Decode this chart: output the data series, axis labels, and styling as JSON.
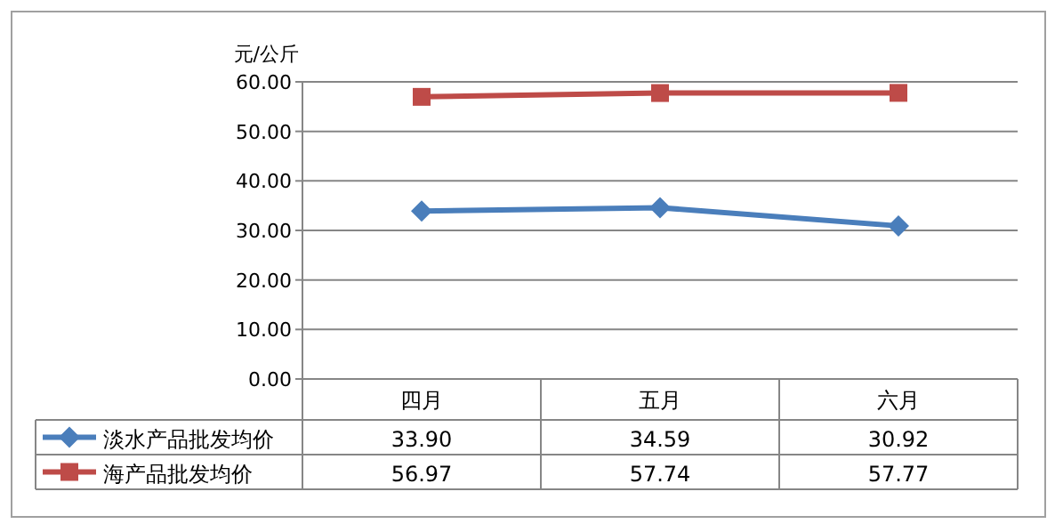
{
  "chart_data": {
    "type": "line",
    "ylabel": "元/公斤",
    "categories": [
      "四月",
      "五月",
      "六月"
    ],
    "series": [
      {
        "name": "淡水产品批发均价",
        "color": "#4a7ebb",
        "marker": "diamond",
        "values": [
          33.9,
          34.59,
          30.92
        ],
        "value_labels": [
          "33.90",
          "34.59",
          "30.92"
        ]
      },
      {
        "name": "海产品批发均价",
        "color": "#be4b48",
        "marker": "square",
        "values": [
          56.97,
          57.74,
          57.77
        ],
        "value_labels": [
          "56.97",
          "57.74",
          "57.77"
        ]
      }
    ],
    "ylim": [
      0,
      60
    ],
    "yticks": [
      {
        "value": 0,
        "label": "0.00"
      },
      {
        "value": 10,
        "label": "10.00"
      },
      {
        "value": 20,
        "label": "20.00"
      },
      {
        "value": 30,
        "label": "30.00"
      },
      {
        "value": 40,
        "label": "40.00"
      },
      {
        "value": 50,
        "label": "50.00"
      },
      {
        "value": 60,
        "label": "60.00"
      }
    ],
    "grid": "y",
    "legend": "bottom left"
  }
}
